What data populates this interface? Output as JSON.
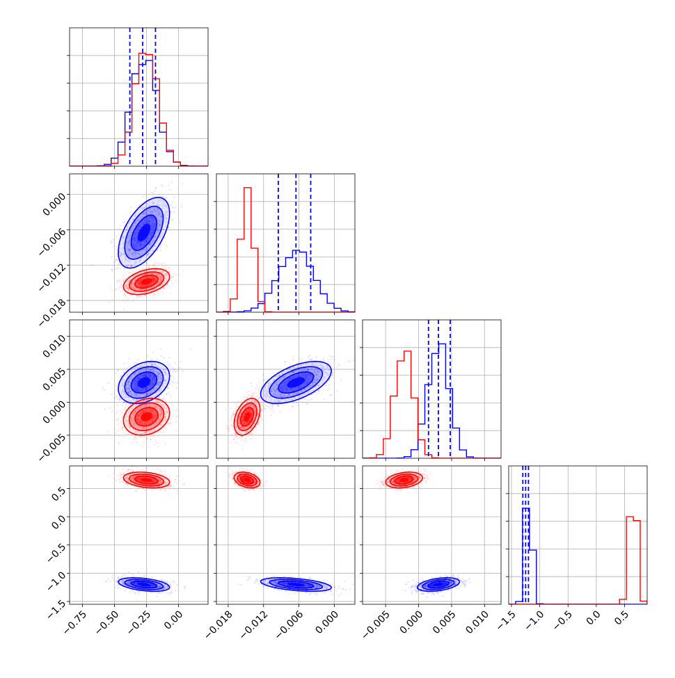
{
  "colors": {
    "blue": "#0000ff",
    "red": "#ff0000"
  },
  "chart_data": {
    "type": "corner",
    "title": "",
    "grid": true,
    "series": [
      {
        "color": "#0000ff",
        "params": [
          {
            "mean": -0.27,
            "sd": 0.1
          },
          {
            "mean": -0.0065,
            "sd": 0.003
          },
          {
            "mean": 0.003,
            "sd": 0.0016
          },
          {
            "mean": -1.2,
            "sd": 0.06
          }
        ],
        "quantiles": [
          [
            -0.38,
            -0.28,
            -0.18
          ],
          [
            -0.0095,
            -0.0065,
            -0.004
          ],
          [
            0.0015,
            0.003,
            0.0048
          ],
          [
            -1.3,
            -1.25,
            -1.2
          ]
        ]
      },
      {
        "color": "#ff0000",
        "params": [
          {
            "mean": -0.25,
            "sd": 0.09
          },
          {
            "mean": -0.0148,
            "sd": 0.0011
          },
          {
            "mean": -0.0022,
            "sd": 0.0014
          },
          {
            "mean": 0.65,
            "sd": 0.07
          }
        ]
      }
    ],
    "axes": [
      {
        "range": [
          -0.85,
          0.23
        ],
        "ticks": [
          -0.75,
          -0.5,
          -0.25,
          0.0
        ],
        "tick_labels": [
          "−0.75",
          "−0.50",
          "−0.25",
          "0.00"
        ]
      },
      {
        "range": [
          -0.02,
          0.0035
        ],
        "ticks": [
          -0.018,
          -0.012,
          -0.006,
          0.0
        ],
        "tick_labels": [
          "−0.018",
          "−0.012",
          "−0.006",
          "0.000"
        ]
      },
      {
        "range": [
          -0.0085,
          0.0125
        ],
        "ticks": [
          -0.005,
          0.0,
          0.005,
          0.01
        ],
        "tick_labels": [
          "−0.005",
          "0.000",
          "0.005",
          "0.010"
        ]
      },
      {
        "range": [
          -1.55,
          0.9
        ],
        "ticks": [
          -1.5,
          -1.0,
          -0.5,
          0.0,
          0.5
        ],
        "tick_labels": [
          "−1.5",
          "−1.0",
          "−0.5",
          "0.0",
          "0.5"
        ]
      }
    ],
    "hist_peaks": [
      {
        "blue": 0.8,
        "red": 0.9
      },
      {
        "blue": 0.45,
        "red": 0.86
      },
      {
        "blue": 0.85,
        "red": 0.8
      },
      {
        "blue": 0.95,
        "red": 0.9
      }
    ],
    "correlations": [
      [
        null,
        null,
        null,
        null
      ],
      [
        0.55,
        null,
        null,
        null
      ],
      [
        0.3,
        0.55,
        null,
        null
      ],
      [
        -0.4,
        -0.45,
        0.4,
        null
      ]
    ]
  }
}
